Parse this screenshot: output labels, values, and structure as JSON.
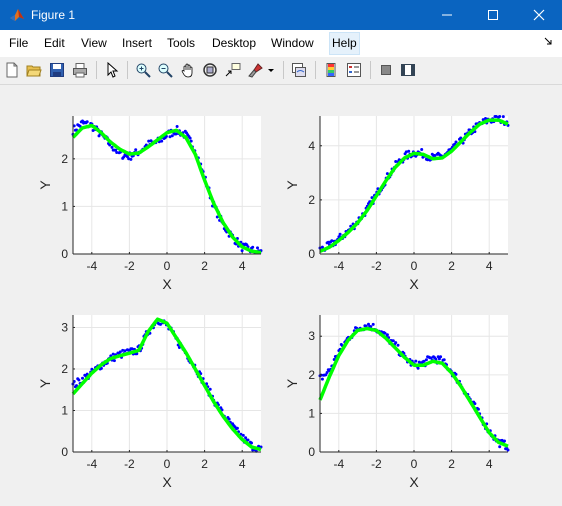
{
  "window": {
    "title": "Figure 1"
  },
  "menu": [
    "File",
    "Edit",
    "View",
    "Insert",
    "Tools",
    "Desktop",
    "Window",
    "Help"
  ],
  "toolbar": [
    "new-figure",
    "open-file",
    "save",
    "print",
    "edit-plot",
    "zoom-in",
    "zoom-out",
    "pan",
    "rotate-3d",
    "data-cursor",
    "brush",
    "link-plot",
    "colorbar",
    "legend",
    "hide-plot-tools",
    "show-plot-tools"
  ],
  "colors": {
    "titlebar": "#0a64c0",
    "points": "#0000ff",
    "fit": "#00ff00"
  },
  "chart_data": [
    {
      "type": "scatter",
      "xlabel": "X",
      "ylabel": "Y",
      "xlim": [
        -5,
        5
      ],
      "ylim": [
        0,
        2.9
      ],
      "xticks": [
        -4,
        -2,
        0,
        2,
        4
      ],
      "yticks": [
        0,
        1,
        2
      ],
      "grid": true,
      "series": [
        {
          "kind": "points",
          "x": [
            -5,
            -4.5,
            -4,
            -3.5,
            -3,
            -2.5,
            -2,
            -1.5,
            -1,
            -0.5,
            0,
            0.5,
            1,
            1.5,
            2,
            2.5,
            3,
            3.5,
            4,
            4.5,
            5
          ],
          "y": [
            2.6,
            2.75,
            2.7,
            2.5,
            2.3,
            2.1,
            2.05,
            2.15,
            2.3,
            2.35,
            2.5,
            2.6,
            2.5,
            2.2,
            1.6,
            1.0,
            0.6,
            0.35,
            0.15,
            0.08,
            0.05
          ]
        },
        {
          "kind": "fit",
          "x": [
            -5,
            -4.5,
            -4,
            -3.5,
            -3,
            -2.5,
            -2,
            -1.5,
            -1,
            -0.5,
            0,
            0.5,
            1,
            1.5,
            2,
            2.5,
            3,
            3.5,
            4,
            4.5,
            5
          ],
          "y": [
            2.45,
            2.65,
            2.7,
            2.55,
            2.35,
            2.2,
            2.1,
            2.12,
            2.25,
            2.4,
            2.55,
            2.6,
            2.45,
            2.1,
            1.55,
            1.05,
            0.65,
            0.35,
            0.15,
            0.06,
            0.03
          ]
        }
      ]
    },
    {
      "type": "scatter",
      "xlabel": "X",
      "ylabel": "Y",
      "xlim": [
        -5,
        5
      ],
      "ylim": [
        0,
        5.1
      ],
      "xticks": [
        -4,
        -2,
        0,
        2,
        4
      ],
      "yticks": [
        0,
        2,
        4
      ],
      "grid": true,
      "series": [
        {
          "kind": "points",
          "x": [
            -5,
            -4.5,
            -4,
            -3.5,
            -3,
            -2.5,
            -2,
            -1.5,
            -1,
            -0.5,
            0,
            0.5,
            1,
            1.5,
            2,
            2.5,
            3,
            3.5,
            4,
            4.5,
            5
          ],
          "y": [
            0.15,
            0.3,
            0.55,
            0.85,
            1.2,
            1.65,
            2.2,
            2.75,
            3.25,
            3.6,
            3.75,
            3.7,
            3.55,
            3.6,
            3.85,
            4.15,
            4.5,
            4.8,
            4.95,
            5.0,
            4.9
          ]
        },
        {
          "kind": "fit",
          "x": [
            -5,
            -4.5,
            -4,
            -3.5,
            -3,
            -2.5,
            -2,
            -1.5,
            -1,
            -0.5,
            0,
            0.5,
            1,
            1.5,
            2,
            2.5,
            3,
            3.5,
            4,
            4.5,
            5
          ],
          "y": [
            0.1,
            0.25,
            0.5,
            0.8,
            1.15,
            1.6,
            2.15,
            2.7,
            3.2,
            3.55,
            3.72,
            3.68,
            3.52,
            3.55,
            3.8,
            4.15,
            4.5,
            4.8,
            4.95,
            4.95,
            4.8
          ]
        }
      ]
    },
    {
      "type": "scatter",
      "xlabel": "X",
      "ylabel": "Y",
      "xlim": [
        -5,
        5
      ],
      "ylim": [
        0,
        3.3
      ],
      "xticks": [
        -4,
        -2,
        0,
        2,
        4
      ],
      "yticks": [
        0,
        1,
        2,
        3
      ],
      "grid": true,
      "series": [
        {
          "kind": "points",
          "x": [
            -5,
            -4.5,
            -4,
            -3.5,
            -3,
            -2.5,
            -2,
            -1.5,
            -1,
            -0.5,
            0,
            0.5,
            1,
            1.5,
            2,
            2.5,
            3,
            3.5,
            4,
            4.5,
            5
          ],
          "y": [
            1.6,
            1.75,
            1.9,
            2.1,
            2.25,
            2.35,
            2.4,
            2.45,
            2.9,
            3.2,
            3.05,
            2.7,
            2.4,
            2.05,
            1.65,
            1.25,
            0.9,
            0.6,
            0.35,
            0.15,
            0.05
          ]
        },
        {
          "kind": "fit",
          "x": [
            -5,
            -4.5,
            -4,
            -3.5,
            -3,
            -2.5,
            -2,
            -1.5,
            -1,
            -0.5,
            0,
            0.5,
            1,
            1.5,
            2,
            2.5,
            3,
            3.5,
            4,
            4.5,
            5
          ],
          "y": [
            1.4,
            1.65,
            1.9,
            2.1,
            2.25,
            2.32,
            2.38,
            2.45,
            2.9,
            3.2,
            3.1,
            2.75,
            2.4,
            2.0,
            1.6,
            1.2,
            0.85,
            0.55,
            0.3,
            0.12,
            0.06
          ]
        }
      ]
    },
    {
      "type": "scatter",
      "xlabel": "X",
      "ylabel": "Y",
      "xlim": [
        -5,
        5
      ],
      "ylim": [
        0,
        3.55
      ],
      "xticks": [
        -4,
        -2,
        0,
        2,
        4
      ],
      "yticks": [
        0,
        1,
        2,
        3
      ],
      "grid": true,
      "series": [
        {
          "kind": "points",
          "x": [
            -5,
            -4.5,
            -4,
            -3.5,
            -3,
            -2.5,
            -2,
            -1.5,
            -1,
            -0.5,
            0,
            0.5,
            1,
            1.5,
            2,
            2.5,
            3,
            3.5,
            4,
            4.5,
            5
          ],
          "y": [
            1.9,
            2.1,
            2.6,
            2.95,
            3.2,
            3.3,
            3.2,
            3.0,
            2.75,
            2.45,
            2.25,
            2.3,
            2.45,
            2.35,
            2.1,
            1.75,
            1.35,
            0.95,
            0.55,
            0.25,
            0.15
          ]
        },
        {
          "kind": "fit",
          "x": [
            -5,
            -4.5,
            -4,
            -3.5,
            -3,
            -2.5,
            -2,
            -1.5,
            -1,
            -0.5,
            0,
            0.5,
            1,
            1.5,
            2,
            2.5,
            3,
            3.5,
            4,
            4.5,
            5
          ],
          "y": [
            1.35,
            1.95,
            2.5,
            2.9,
            3.15,
            3.2,
            3.15,
            2.95,
            2.7,
            2.45,
            2.25,
            2.25,
            2.35,
            2.3,
            2.05,
            1.7,
            1.3,
            0.9,
            0.5,
            0.25,
            0.15
          ]
        }
      ]
    }
  ]
}
